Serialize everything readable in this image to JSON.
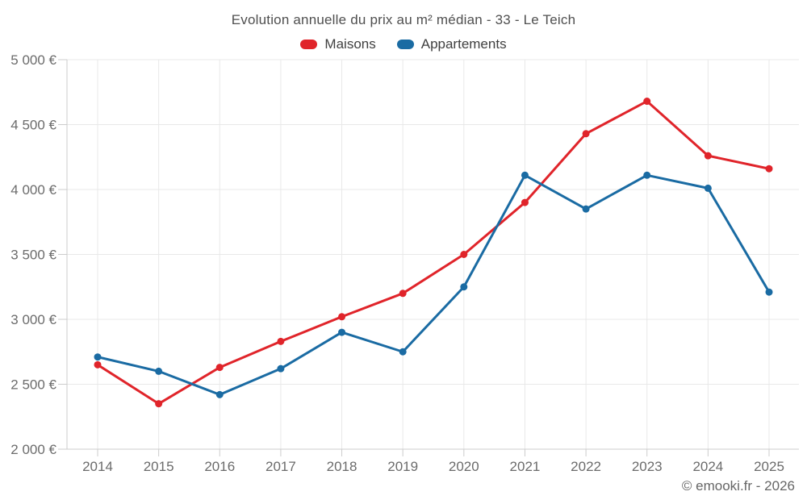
{
  "page": {
    "footer_credit": "© emooki.fr - 2026"
  },
  "colors": {
    "maisons": "#e0242a",
    "appartements": "#1a6ba3",
    "grid": "#e8e8e8",
    "axis": "#cccccc",
    "title_text": "#4f4f4f",
    "tick_text": "#6b6b6b"
  },
  "chart_data": {
    "type": "line",
    "title": "Evolution annuelle du prix au m² médian - 33 - Le Teich",
    "xlabel": "",
    "ylabel": "",
    "categories": [
      "2014",
      "2015",
      "2016",
      "2017",
      "2018",
      "2019",
      "2020",
      "2021",
      "2022",
      "2023",
      "2024",
      "2025"
    ],
    "series": [
      {
        "name": "Maisons",
        "color": "#e0242a",
        "values": [
          2650,
          2350,
          2630,
          2830,
          3020,
          3200,
          3500,
          3900,
          4430,
          4680,
          4260,
          4160
        ]
      },
      {
        "name": "Appartements",
        "color": "#1a6ba3",
        "values": [
          2710,
          2600,
          2420,
          2620,
          2900,
          2750,
          3250,
          4110,
          3850,
          4110,
          4010,
          3210
        ]
      }
    ],
    "ylim": [
      2000,
      5000
    ],
    "yticks": [
      {
        "value": 2000,
        "label": "2 000 €"
      },
      {
        "value": 2500,
        "label": "2 500 €"
      },
      {
        "value": 3000,
        "label": "3 000 €"
      },
      {
        "value": 3500,
        "label": "3 500 €"
      },
      {
        "value": 4000,
        "label": "4 000 €"
      },
      {
        "value": 4500,
        "label": "4 500 €"
      },
      {
        "value": 5000,
        "label": "5 000 €"
      }
    ],
    "grid": true,
    "legend_position": "top",
    "marker": "circle"
  }
}
